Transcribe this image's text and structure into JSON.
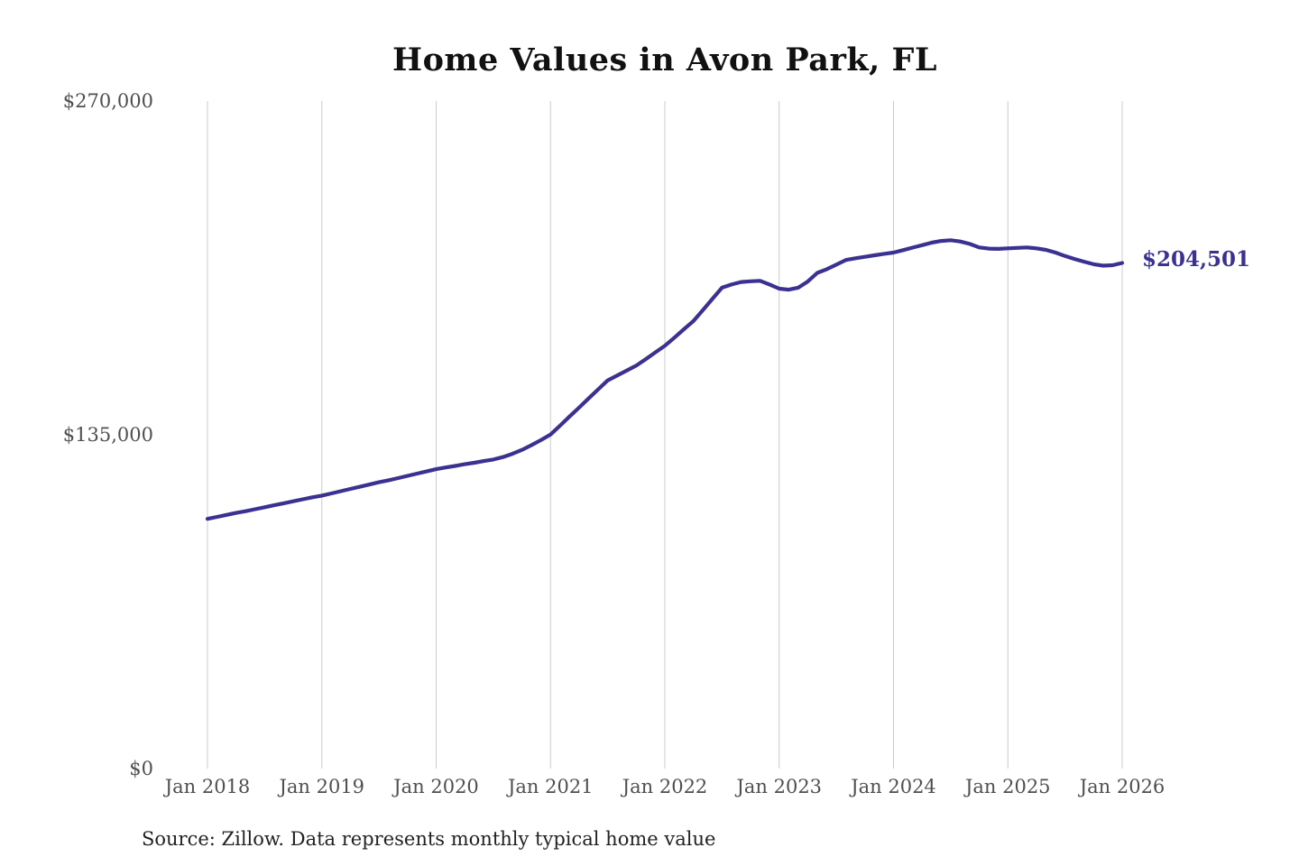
{
  "page": {
    "background": "#ffffff"
  },
  "chart": {
    "title": "Home Values in Avon Park, FL",
    "latest_value_label": "$204,501",
    "source_note": "Source: Zillow. Data represents monthly typical home value",
    "colors": {
      "line": "#3a3191",
      "grid": "#cccccc",
      "axis_text": "#4f4f4f",
      "title_text": "#111111",
      "note_text": "#222222"
    }
  },
  "chart_data": {
    "type": "line",
    "title": "Home Values in Avon Park, FL",
    "xlabel": "",
    "ylabel": "",
    "ylim": [
      0,
      270000
    ],
    "grid": "vertical-only",
    "legend": "none",
    "series_name": "Monthly typical home value",
    "latest_value": 204501,
    "y_ticks": [
      {
        "label": "$0",
        "value": 0
      },
      {
        "label": "$135,000",
        "value": 135000
      },
      {
        "label": "$270,000",
        "value": 270000
      }
    ],
    "x_tick_labels": [
      "Jan 2018",
      "Jan 2019",
      "Jan 2020",
      "Jan 2021",
      "Jan 2022",
      "Jan 2023",
      "Jan 2024",
      "Jan 2025",
      "Jan 2026"
    ],
    "months": [
      "2018-01",
      "2018-02",
      "2018-03",
      "2018-04",
      "2018-05",
      "2018-06",
      "2018-07",
      "2018-08",
      "2018-09",
      "2018-10",
      "2018-11",
      "2018-12",
      "2019-01",
      "2019-02",
      "2019-03",
      "2019-04",
      "2019-05",
      "2019-06",
      "2019-07",
      "2019-08",
      "2019-09",
      "2019-10",
      "2019-11",
      "2019-12",
      "2020-01",
      "2020-02",
      "2020-03",
      "2020-04",
      "2020-05",
      "2020-06",
      "2020-07",
      "2020-08",
      "2020-09",
      "2020-10",
      "2020-11",
      "2020-12",
      "2021-01",
      "2021-02",
      "2021-03",
      "2021-04",
      "2021-05",
      "2021-06",
      "2021-07",
      "2021-08",
      "2021-09",
      "2021-10",
      "2021-11",
      "2021-12",
      "2022-01",
      "2022-02",
      "2022-03",
      "2022-04",
      "2022-05",
      "2022-06",
      "2022-07",
      "2022-08",
      "2022-09",
      "2022-10",
      "2022-11",
      "2022-12",
      "2023-01",
      "2023-02",
      "2023-03",
      "2023-04",
      "2023-05",
      "2023-06",
      "2023-07",
      "2023-08",
      "2023-09",
      "2023-10",
      "2023-11",
      "2023-12",
      "2024-01",
      "2024-02",
      "2024-03",
      "2024-04",
      "2024-05",
      "2024-06",
      "2024-07",
      "2024-08",
      "2024-09",
      "2024-10",
      "2024-11",
      "2024-12",
      "2025-01",
      "2025-02",
      "2025-03",
      "2025-04",
      "2025-05",
      "2025-06",
      "2025-07",
      "2025-08",
      "2025-09",
      "2025-10",
      "2025-11",
      "2025-12",
      "2026-01"
    ],
    "values": [
      101000,
      101800,
      102600,
      103400,
      104100,
      104900,
      105700,
      106500,
      107300,
      108100,
      108900,
      109700,
      110400,
      111300,
      112200,
      113100,
      114000,
      114900,
      115800,
      116600,
      117500,
      118400,
      119300,
      120200,
      121100,
      121800,
      122400,
      123100,
      123700,
      124400,
      125000,
      126000,
      127300,
      128900,
      130800,
      132900,
      135100,
      138700,
      142400,
      146000,
      149700,
      153400,
      157000,
      159000,
      161000,
      163000,
      165600,
      168300,
      171000,
      174300,
      177700,
      181000,
      185500,
      190000,
      194500,
      195800,
      196800,
      197100,
      197300,
      195800,
      194100,
      193700,
      194500,
      197000,
      200500,
      202000,
      203800,
      205700,
      206400,
      207000,
      207600,
      208200,
      208700,
      209700,
      210700,
      211700,
      212700,
      213400,
      213700,
      213200,
      212200,
      210800,
      210300,
      210200,
      210400,
      210600,
      210800,
      210400,
      209800,
      208700,
      207300,
      206100,
      205000,
      204000,
      203400,
      203600,
      204501
    ]
  }
}
